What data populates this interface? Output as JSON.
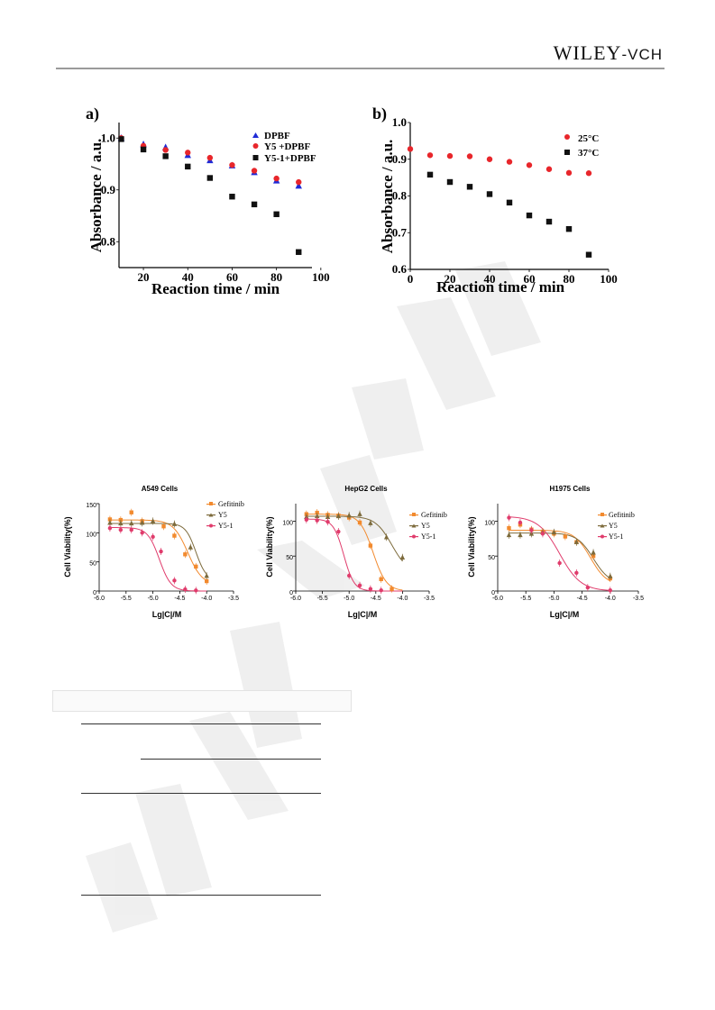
{
  "header": {
    "logo_wiley": "WILEY",
    "logo_vch": "-VCH"
  },
  "colors": {
    "red": "#e8262b",
    "black": "#111111",
    "blue": "#1f2bd6",
    "orange": "#f28a2e",
    "olive": "#7d6b3c",
    "pink": "#e03c6c",
    "rule": "#9a9a9a"
  },
  "chart_data": [
    {
      "type": "scatter",
      "panel_label": "a)",
      "xlabel": "Reaction time / min",
      "ylabel": "Absorbance / a.u.",
      "xlim": [
        9,
        96
      ],
      "ylim": [
        0.75,
        1.03
      ],
      "xticks": [
        20,
        40,
        60,
        80,
        100
      ],
      "yticks": [
        0.8,
        0.9,
        1.0
      ],
      "ytick_labels": [
        "0.8",
        "0.9",
        "1.0"
      ],
      "legend_position": "top-right",
      "series": [
        {
          "name": "DPBF",
          "marker": "triangle",
          "color": "#1f2bd6",
          "points": [
            [
              10,
              1.0
            ],
            [
              20,
              0.988
            ],
            [
              30,
              0.982
            ],
            [
              40,
              0.967
            ],
            [
              50,
              0.957
            ],
            [
              60,
              0.947
            ],
            [
              70,
              0.934
            ],
            [
              80,
              0.918
            ],
            [
              90,
              0.908
            ]
          ]
        },
        {
          "name": "Y5 +DPBF",
          "marker": "circle",
          "color": "#e8262b",
          "points": [
            [
              10,
              1.0
            ],
            [
              20,
              0.985
            ],
            [
              30,
              0.977
            ],
            [
              40,
              0.972
            ],
            [
              50,
              0.962
            ],
            [
              60,
              0.948
            ],
            [
              70,
              0.937
            ],
            [
              80,
              0.922
            ],
            [
              90,
              0.915
            ]
          ]
        },
        {
          "name": "Y5-1+DPBF",
          "marker": "square",
          "color": "#111111",
          "points": [
            [
              10,
              0.998
            ],
            [
              20,
              0.978
            ],
            [
              30,
              0.965
            ],
            [
              40,
              0.945
            ],
            [
              50,
              0.923
            ],
            [
              60,
              0.887
            ],
            [
              70,
              0.872
            ],
            [
              80,
              0.853
            ],
            [
              90,
              0.78
            ]
          ]
        }
      ]
    },
    {
      "type": "scatter",
      "panel_label": "b)",
      "xlabel": "Reaction time / min",
      "ylabel": "Absorbance / a.u.",
      "xlim": [
        0,
        100
      ],
      "ylim": [
        0.6,
        1.0
      ],
      "xticks": [
        0,
        20,
        40,
        60,
        80,
        100
      ],
      "yticks": [
        0.6,
        0.7,
        0.8,
        0.9,
        1.0
      ],
      "ytick_labels": [
        "0.6",
        "0.7",
        "0.8",
        "0.9",
        "1.0"
      ],
      "legend_position": "top-right",
      "series": [
        {
          "name": "25°C",
          "marker": "circle",
          "color": "#e8262b",
          "points": [
            [
              0,
              0.928
            ],
            [
              10,
              0.911
            ],
            [
              20,
              0.909
            ],
            [
              30,
              0.908
            ],
            [
              40,
              0.9
            ],
            [
              50,
              0.893
            ],
            [
              60,
              0.884
            ],
            [
              70,
              0.873
            ],
            [
              80,
              0.863
            ],
            [
              90,
              0.862
            ]
          ]
        },
        {
          "name": "37°C",
          "marker": "square",
          "color": "#111111",
          "points": [
            [
              10,
              0.858
            ],
            [
              20,
              0.838
            ],
            [
              30,
              0.825
            ],
            [
              40,
              0.805
            ],
            [
              50,
              0.782
            ],
            [
              60,
              0.747
            ],
            [
              70,
              0.73
            ],
            [
              80,
              0.71
            ],
            [
              90,
              0.64
            ]
          ]
        }
      ]
    },
    {
      "type": "line",
      "title": "A549 Cells",
      "xlabel": "Lg|C|/M",
      "ylabel": "Cell Viability(%)",
      "xlim": [
        -6.0,
        -3.5
      ],
      "ylim": [
        0,
        150
      ],
      "xticks": [
        -6.0,
        -5.5,
        -5.0,
        -4.5,
        -4.0,
        -3.5
      ],
      "xtick_labels": [
        "-6.0",
        "-5.5",
        "-5.0",
        "-4.5",
        "-4.0",
        "-3.5"
      ],
      "yticks": [
        0,
        50,
        100,
        150
      ],
      "legend_position": "top-right",
      "series": [
        {
          "name": "Gefitinib",
          "marker": "square",
          "color": "#f28a2e",
          "top": 122,
          "bottom": 10,
          "ec50": -4.35,
          "hill": 3.2,
          "points": [
            [
              -5.8,
              123
            ],
            [
              -5.6,
              122
            ],
            [
              -5.4,
              135
            ],
            [
              -5.2,
              120
            ],
            [
              -4.8,
              111
            ],
            [
              -4.6,
              95
            ],
            [
              -4.4,
              63
            ],
            [
              -4.2,
              42
            ],
            [
              -4.0,
              17
            ]
          ]
        },
        {
          "name": "Y5",
          "marker": "triangle",
          "color": "#7d6b3c",
          "top": 116,
          "bottom": 18,
          "ec50": -4.2,
          "hill": 4.5,
          "points": [
            [
              -5.8,
              117
            ],
            [
              -5.6,
              116
            ],
            [
              -5.4,
              116
            ],
            [
              -5.2,
              117
            ],
            [
              -5.0,
              120
            ],
            [
              -4.6,
              115
            ],
            [
              -4.3,
              75
            ],
            [
              -4.0,
              26
            ]
          ]
        },
        {
          "name": "Y5-1",
          "marker": "circle",
          "color": "#e03c6c",
          "top": 109,
          "bottom": 0,
          "ec50": -4.88,
          "hill": 4.0,
          "points": [
            [
              -5.8,
              108
            ],
            [
              -5.6,
              105
            ],
            [
              -5.4,
              105
            ],
            [
              -5.2,
              100
            ],
            [
              -5.0,
              93
            ],
            [
              -4.85,
              68
            ],
            [
              -4.6,
              18
            ],
            [
              -4.4,
              3
            ],
            [
              -4.2,
              1
            ]
          ]
        }
      ]
    },
    {
      "type": "line",
      "title": "HepG2 Cells",
      "xlabel": "Lg|C|/M",
      "ylabel": "Cell Viability(%)",
      "xlim": [
        -6.0,
        -3.5
      ],
      "ylim": [
        0,
        125
      ],
      "xticks": [
        -6.0,
        -5.5,
        -5.0,
        -4.5,
        -4.0,
        -3.5
      ],
      "xtick_labels": [
        "-6.0",
        "-5.5",
        "-5.0",
        "-4.5",
        "-4.0",
        "-3.5"
      ],
      "yticks": [
        0,
        50,
        100
      ],
      "legend_position": "top-right",
      "series": [
        {
          "name": "Gefitinib",
          "marker": "square",
          "color": "#f28a2e",
          "top": 110,
          "bottom": 0,
          "ec50": -4.55,
          "hill": 3.5,
          "points": [
            [
              -5.8,
              110
            ],
            [
              -5.6,
              112
            ],
            [
              -5.4,
              109
            ],
            [
              -5.2,
              108
            ],
            [
              -5.0,
              105
            ],
            [
              -4.8,
              98
            ],
            [
              -4.6,
              65
            ],
            [
              -4.4,
              17
            ],
            [
              -4.2,
              3
            ]
          ]
        },
        {
          "name": "Y5",
          "marker": "triangle",
          "color": "#7d6b3c",
          "top": 107,
          "bottom": 25,
          "ec50": -4.2,
          "hill": 2.8,
          "points": [
            [
              -5.8,
              106
            ],
            [
              -5.6,
              107
            ],
            [
              -5.4,
              106
            ],
            [
              -5.2,
              107
            ],
            [
              -5.0,
              108
            ],
            [
              -4.8,
              110
            ],
            [
              -4.6,
              97
            ],
            [
              -4.3,
              77
            ],
            [
              -4.0,
              48
            ]
          ]
        },
        {
          "name": "Y5-1",
          "marker": "circle",
          "color": "#e03c6c",
          "top": 103,
          "bottom": 0,
          "ec50": -5.1,
          "hill": 4.5,
          "points": [
            [
              -5.8,
              102
            ],
            [
              -5.6,
              101
            ],
            [
              -5.4,
              99
            ],
            [
              -5.2,
              85
            ],
            [
              -5.0,
              22
            ],
            [
              -4.8,
              8
            ],
            [
              -4.6,
              3
            ],
            [
              -4.4,
              1
            ]
          ]
        }
      ]
    },
    {
      "type": "line",
      "title": "H1975 Cells",
      "xlabel": "Lg|C|/M",
      "ylabel": "Cell Viability(%)",
      "xlim": [
        -6.0,
        -3.5
      ],
      "ylim": [
        0,
        125
      ],
      "xticks": [
        -6.0,
        -5.5,
        -5.0,
        -4.5,
        -4.0,
        -3.5
      ],
      "xtick_labels": [
        "-6.0",
        "-5.5",
        "-5.0",
        "-4.5",
        "-4.0",
        "-3.5"
      ],
      "yticks": [
        0,
        50,
        100
      ],
      "legend_position": "top-right",
      "series": [
        {
          "name": "Gefitinib",
          "marker": "square",
          "color": "#f28a2e",
          "top": 87,
          "bottom": 8,
          "ec50": -4.35,
          "hill": 3.0,
          "points": [
            [
              -5.8,
              90
            ],
            [
              -5.6,
              95
            ],
            [
              -5.4,
              88
            ],
            [
              -5.2,
              85
            ],
            [
              -5.0,
              82
            ],
            [
              -4.8,
              78
            ],
            [
              -4.6,
              70
            ],
            [
              -4.3,
              50
            ],
            [
              -4.0,
              18
            ]
          ]
        },
        {
          "name": "Y5",
          "marker": "triangle",
          "color": "#7d6b3c",
          "top": 83,
          "bottom": 10,
          "ec50": -4.3,
          "hill": 3.0,
          "points": [
            [
              -5.8,
              80
            ],
            [
              -5.6,
              80
            ],
            [
              -5.4,
              82
            ],
            [
              -5.2,
              84
            ],
            [
              -5.0,
              84
            ],
            [
              -4.6,
              70
            ],
            [
              -4.3,
              55
            ],
            [
              -4.0,
              21
            ]
          ]
        },
        {
          "name": "Y5-1",
          "marker": "circle",
          "color": "#e03c6c",
          "top": 107,
          "bottom": 0,
          "ec50": -4.9,
          "hill": 2.3,
          "points": [
            [
              -5.8,
              105
            ],
            [
              -5.6,
              98
            ],
            [
              -5.4,
              87
            ],
            [
              -5.2,
              82
            ],
            [
              -4.9,
              40
            ],
            [
              -4.6,
              26
            ],
            [
              -4.4,
              5
            ],
            [
              -4.0,
              1
            ]
          ]
        }
      ]
    }
  ]
}
